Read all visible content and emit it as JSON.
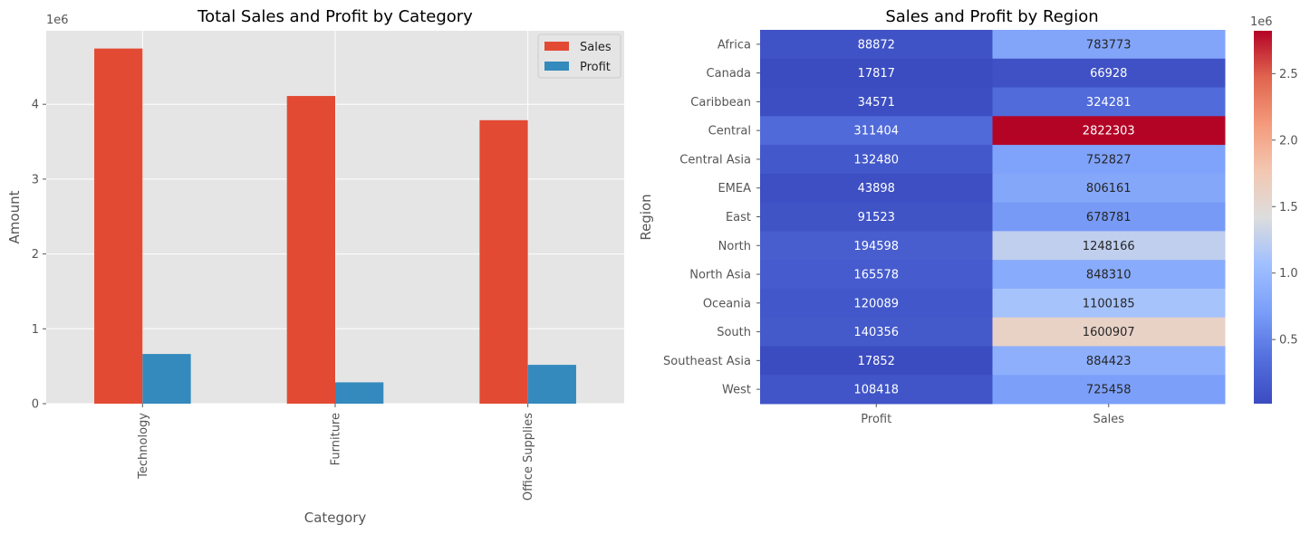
{
  "chart_data": [
    {
      "type": "bar",
      "title": "Total Sales and Profit by Category",
      "xlabel": "Category",
      "ylabel": "Amount",
      "y_offset_label": "1e6",
      "categories": [
        "Technology",
        "Furniture",
        "Office Supplies"
      ],
      "series": [
        {
          "name": "Sales",
          "color": "#E24A33",
          "values": [
            4744557,
            4110452,
            3787070
          ]
        },
        {
          "name": "Profit",
          "color": "#348ABD",
          "values": [
            663779,
            285205,
            518473
          ]
        }
      ],
      "ylim": [
        0,
        4981785
      ],
      "yticks": [
        0,
        1,
        2,
        3,
        4
      ],
      "grid": true,
      "legend_position": "top-right"
    },
    {
      "type": "heatmap",
      "title": "Sales and Profit by Region",
      "ylabel": "Region",
      "columns": [
        "Profit",
        "Sales"
      ],
      "rows": [
        "Africa",
        "Canada",
        "Caribbean",
        "Central",
        "Central Asia",
        "EMEA",
        "East",
        "North",
        "North Asia",
        "Oceania",
        "South",
        "Southeast Asia",
        "West"
      ],
      "values": [
        [
          88872,
          783773
        ],
        [
          17817,
          66928
        ],
        [
          34571,
          324281
        ],
        [
          311404,
          2822303
        ],
        [
          132480,
          752827
        ],
        [
          43898,
          806161
        ],
        [
          91523,
          678781
        ],
        [
          194598,
          1248166
        ],
        [
          165578,
          848310
        ],
        [
          120089,
          1100185
        ],
        [
          140356,
          1600907
        ],
        [
          17852,
          884423
        ],
        [
          108418,
          725458
        ]
      ],
      "colormap": "coolwarm",
      "vmin": 17817,
      "vmax": 2822303,
      "colorbar_offset_label": "1e6",
      "colorbar_ticks": [
        "0.5",
        "1.0",
        "1.5",
        "2.0",
        "2.5"
      ],
      "colorbar_tick_values": [
        0.5,
        1.0,
        1.5,
        2.0,
        2.5
      ]
    }
  ]
}
